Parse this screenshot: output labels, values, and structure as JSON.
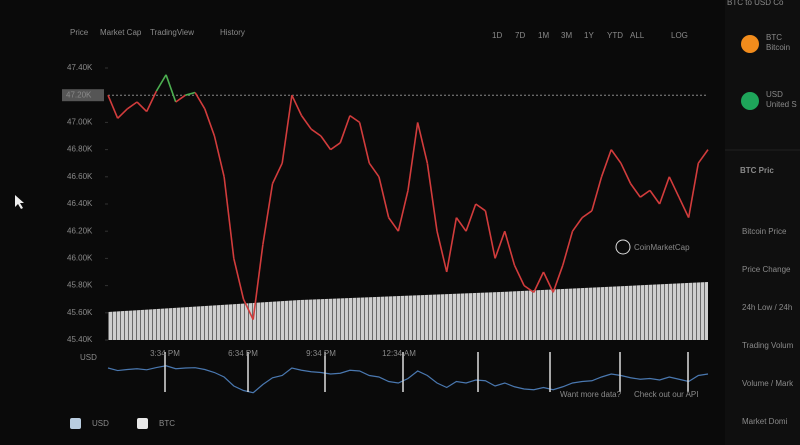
{
  "tabs": [
    "Price",
    "Market Cap",
    "TradingView",
    "History"
  ],
  "ranges": [
    "1D",
    "7D",
    "1M",
    "3M",
    "1Y",
    "YTD",
    "ALL",
    "LOG"
  ],
  "chart_data": {
    "type": "line",
    "values": [
      47200,
      47030,
      47100,
      47150,
      47080,
      47230,
      47350,
      47150,
      47200,
      47220,
      47100,
      46900,
      46600,
      46000,
      45700,
      45550,
      46100,
      46550,
      46700,
      47200,
      47050,
      46950,
      46900,
      46800,
      46850,
      47050,
      47000,
      46700,
      46600,
      46300,
      46200,
      46500,
      47000,
      46700,
      46200,
      45900,
      46300,
      46200,
      46400,
      46350,
      46000,
      46200,
      45950,
      45800,
      45750,
      45900,
      45750,
      45950,
      46200,
      46300,
      46350,
      46600,
      46800,
      46700,
      46550,
      46450,
      46500,
      46400,
      46600,
      46450,
      46300,
      46700,
      46800
    ],
    "ylim": [
      45400,
      47400
    ],
    "yticks": [
      {
        "value": 45400,
        "label": "45.40K"
      },
      {
        "value": 45600,
        "label": "45.60K"
      },
      {
        "value": 45800,
        "label": "45.80K"
      },
      {
        "value": 46000,
        "label": "46.00K"
      },
      {
        "value": 46200,
        "label": "46.20K"
      },
      {
        "value": 46400,
        "label": "46.40K"
      },
      {
        "value": 46600,
        "label": "46.60K"
      },
      {
        "value": 46800,
        "label": "46.80K"
      },
      {
        "value": 47000,
        "label": "47.00K"
      },
      {
        "value": 47400,
        "label": "47.40K"
      }
    ],
    "reference_line": {
      "value": 47200,
      "label": "47.20K"
    },
    "color_above": "#4caf50",
    "color_below": "#d23c3c",
    "y_axis_label": "USD",
    "x_tick_labels": [
      "3:34 PM",
      "6:34 PM",
      "9:34 PM",
      "12:34 AM"
    ],
    "watermark": "CoinMarketCap",
    "legend": [
      {
        "name": "USD",
        "color": "#b9cde0"
      },
      {
        "name": "BTC",
        "color": "#e8e8e8"
      }
    ]
  },
  "footer": {
    "text": "Want more data?",
    "link": "Check out our API"
  },
  "side": {
    "title": "BTC to USD Co",
    "assets": [
      {
        "code": "BTC",
        "name": "Bitcoin"
      },
      {
        "code": "USD",
        "name": "United S"
      }
    ],
    "stats_title": "BTC Pric",
    "stats": [
      "Bitcoin Price",
      "Price Change",
      "24h Low / 24h",
      "Trading Volum",
      "Volume / Mark",
      "Market Domi"
    ]
  }
}
